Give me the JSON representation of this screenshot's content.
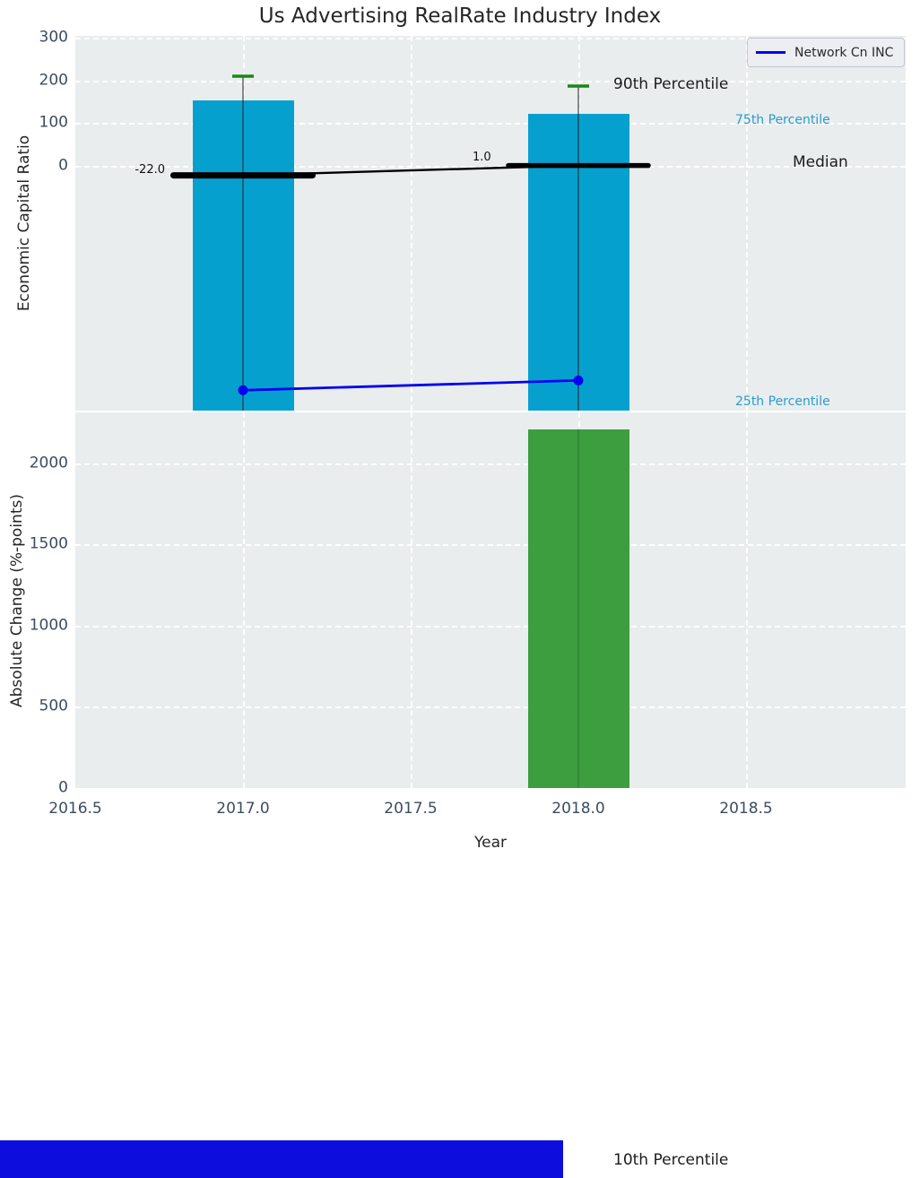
{
  "title": "Us Advertising RealRate Industry Index",
  "legend": {
    "label": "Network Cn INC",
    "line_color": "#0202f0"
  },
  "axes": {
    "top": {
      "ylabel": "Economic Capital Ratio",
      "yticks": [
        300,
        200,
        100,
        0
      ]
    },
    "bottom": {
      "ylabel": "Absolute Change (%-points)",
      "xlabel": "Year",
      "yticks": [
        2000,
        1500,
        1000,
        500,
        0
      ],
      "xticks": [
        {
          "value": 2016.5,
          "label": "2016.5"
        },
        {
          "value": 2017.0,
          "label": "2017.0"
        },
        {
          "value": 2017.5,
          "label": "2017.5"
        },
        {
          "value": 2018.0,
          "label": "2018.0"
        },
        {
          "value": 2018.5,
          "label": "2018.5"
        }
      ]
    }
  },
  "annotations": {
    "p90": "90th Percentile",
    "p75": "75th Percentile",
    "median": "Median",
    "p25": "25th Percentile",
    "p10": "10th Percentile",
    "median_2017_label": "-22.0",
    "median_2018_label": "1.0"
  },
  "colors": {
    "bar_cyan": "#06a0cf",
    "bar_green": "#3c9e3e",
    "cap_green": "#178817",
    "median_black": "#000000",
    "company_blue": "#0202f0",
    "whisker_gray": "#444444",
    "axes_bg": "#e9edee",
    "tick_color": "#3c4c60",
    "percentile_cyan": "#2a9cce",
    "strip_blue": "#0d0ddd"
  },
  "chart_data": [
    {
      "type": "bar",
      "name": "economic-capital-ratio-distribution",
      "title": "Us Advertising RealRate Industry Index",
      "ylabel": "Economic Capital Ratio",
      "x": [
        2017,
        2018
      ],
      "series": [
        {
          "name": "90th_percentile",
          "values": [
            210,
            187
          ]
        },
        {
          "name": "75th_percentile_bar_top",
          "values": [
            153,
            122
          ]
        },
        {
          "name": "median",
          "values": [
            -22.0,
            1.0
          ]
        },
        {
          "name": "25th_percentile_approx",
          "values": [
            -550,
            -552
          ]
        },
        {
          "name": "10th_percentile_approx",
          "values": [
            -2330,
            -2330
          ]
        },
        {
          "name": "Network Cn INC",
          "values": [
            -525,
            -502
          ]
        }
      ],
      "ylim": [
        -575,
        305
      ],
      "xlim": [
        2016.5,
        2019.0
      ],
      "yticks": [
        300,
        200,
        100,
        0
      ],
      "grid": true,
      "legend_position": "upper right"
    },
    {
      "type": "bar",
      "name": "absolute-change",
      "ylabel": "Absolute Change (%-points)",
      "xlabel": "Year",
      "x": [
        2018
      ],
      "values": [
        2210
      ],
      "ylim": [
        0,
        2320
      ],
      "yticks": [
        2000,
        1500,
        1000,
        500,
        0
      ],
      "xticks": [
        2016.5,
        2017.0,
        2017.5,
        2018.0,
        2018.5
      ],
      "grid": true
    }
  ]
}
